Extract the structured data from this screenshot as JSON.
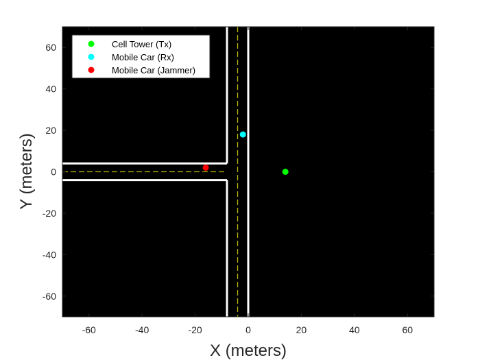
{
  "chart_data": {
    "type": "scatter",
    "title": "",
    "xlabel": "X (meters)",
    "ylabel": "Y (meters)",
    "xlim": [
      -70,
      70
    ],
    "ylim": [
      -70,
      70
    ],
    "xticks": [
      -60,
      -40,
      -20,
      0,
      20,
      40,
      60
    ],
    "yticks": [
      -60,
      -40,
      -20,
      0,
      20,
      40,
      60
    ],
    "grid": false,
    "legend_position": "top-left",
    "background_color": "#000000",
    "series": [
      {
        "name": "Cell Tower (Tx)",
        "color": "#00ff00",
        "x": [
          14
        ],
        "y": [
          0
        ]
      },
      {
        "name": "Mobile Car (Rx)",
        "color": "#00ffff",
        "x": [
          -2
        ],
        "y": [
          18
        ]
      },
      {
        "name": "Mobile Car (Jammer)",
        "color": "#ff0000",
        "x": [
          -16
        ],
        "y": [
          2
        ]
      }
    ],
    "road": {
      "edge_color": "#ffffff",
      "centerline_color": "#b3b300",
      "edges": [
        {
          "x": [
            -8,
            -8
          ],
          "y": [
            70,
            4
          ]
        },
        {
          "x": [
            -70,
            -8
          ],
          "y": [
            4,
            4
          ]
        },
        {
          "x": [
            -70,
            -8
          ],
          "y": [
            -4,
            -4
          ]
        },
        {
          "x": [
            -8,
            -8
          ],
          "y": [
            -4,
            -70
          ]
        },
        {
          "x": [
            0,
            0
          ],
          "y": [
            70,
            -70
          ]
        }
      ],
      "centerlines": [
        {
          "x": [
            -4,
            -4
          ],
          "y": [
            70,
            -70
          ]
        },
        {
          "x": [
            -70,
            -8
          ],
          "y": [
            0,
            0
          ]
        }
      ]
    }
  }
}
